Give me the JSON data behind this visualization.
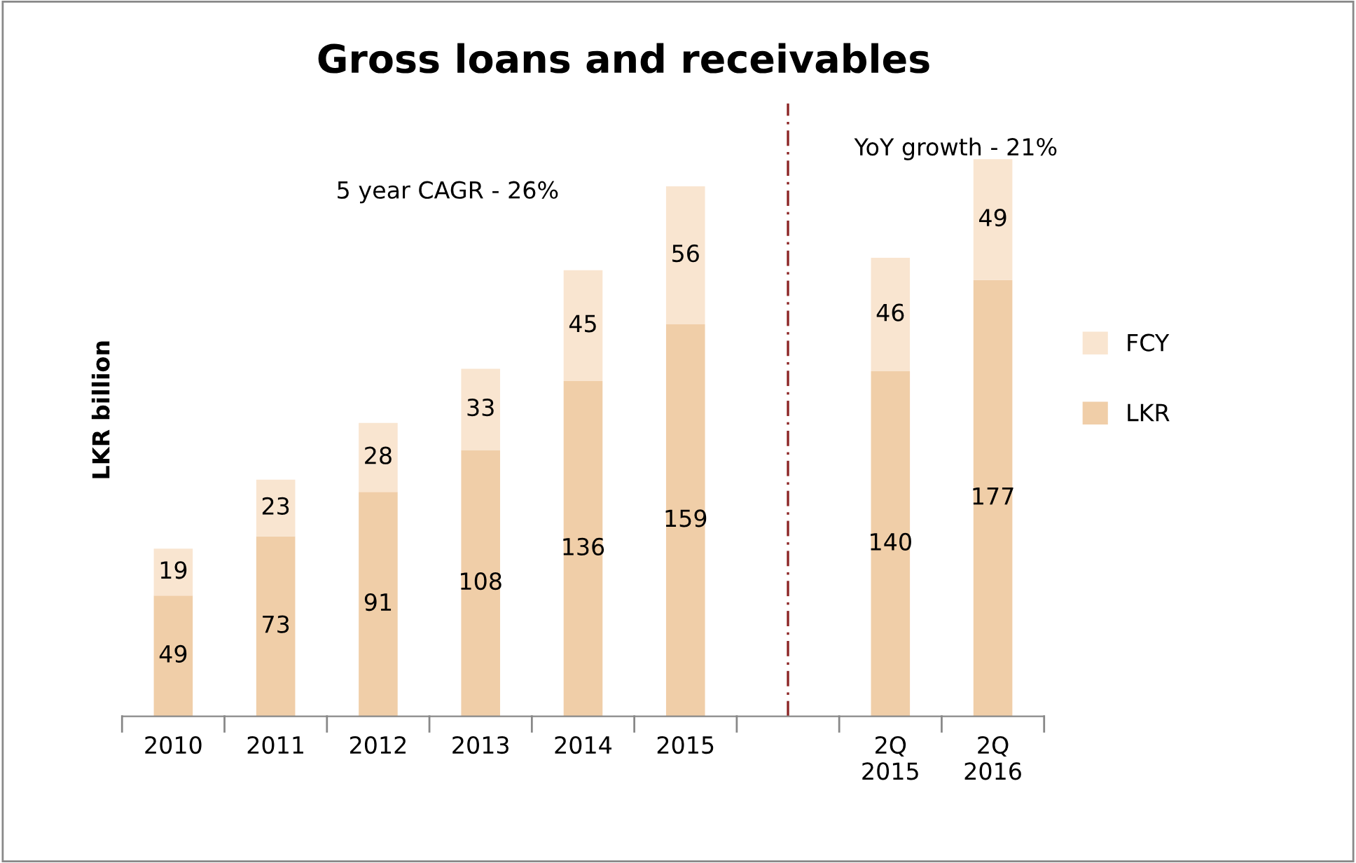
{
  "chart_data": {
    "type": "bar",
    "title": "Gross loans and receivables",
    "ylabel": "LKR billion",
    "categories": [
      "2010",
      "2011",
      "2012",
      "2013",
      "2014",
      "2015",
      null,
      "2Q\n2015",
      "2Q\n2016"
    ],
    "stacked": true,
    "data_labels": true,
    "legend": "right",
    "grid": false,
    "series": [
      {
        "name": "LKR",
        "color": "#f0cea8",
        "values": [
          49,
          73,
          91,
          108,
          136,
          159,
          null,
          140,
          177
        ]
      },
      {
        "name": "FCY",
        "color": "#f9e5d0",
        "values": [
          19,
          23,
          28,
          33,
          45,
          56,
          null,
          46,
          49
        ]
      }
    ],
    "annotations": [
      "5 year CAGR - 26%",
      "YoY growth - 21%"
    ]
  }
}
